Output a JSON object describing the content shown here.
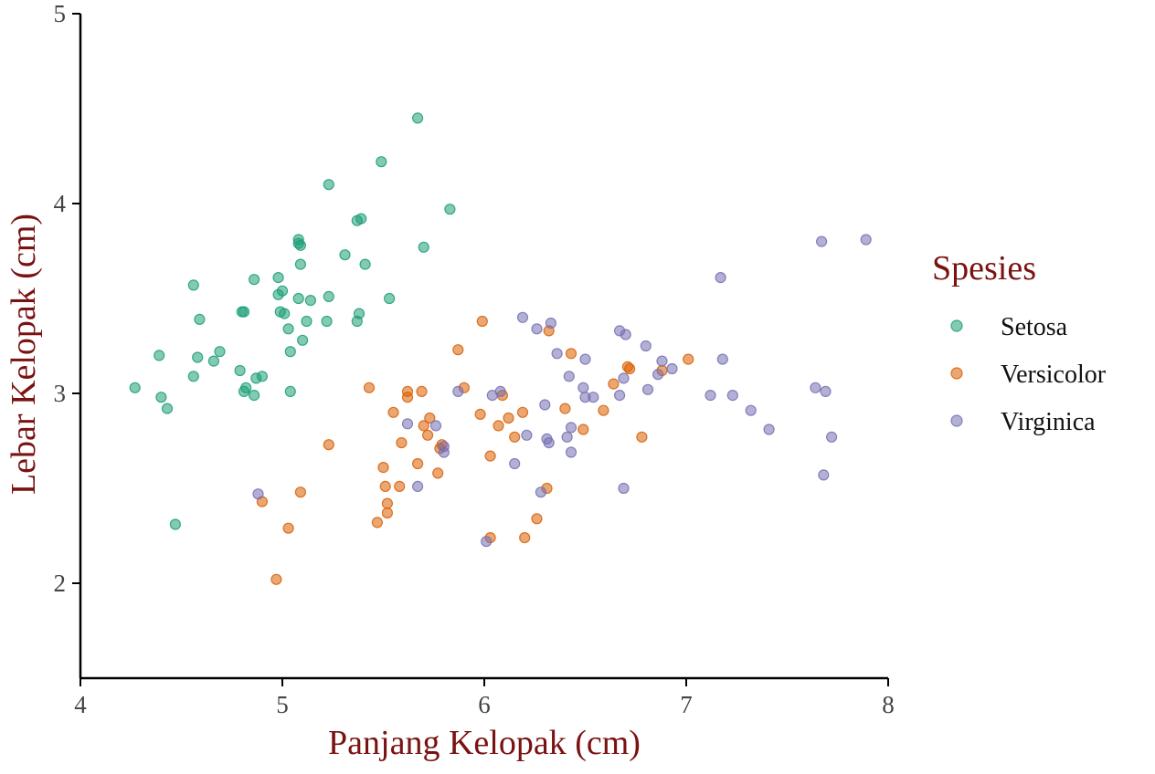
{
  "chart_data": {
    "type": "scatter",
    "xlabel": "Panjang Kelopak (cm)",
    "ylabel": "Lebar Kelopak (cm)",
    "xlim": [
      4,
      8
    ],
    "ylim": [
      1.5,
      5
    ],
    "xticks": [
      "4",
      "5",
      "6",
      "7",
      "8"
    ],
    "yticks": [
      "2",
      "3",
      "4",
      "5"
    ],
    "grid": false,
    "legend": {
      "title": "Spesies",
      "position": "right"
    },
    "series": [
      {
        "name": "Setosa",
        "color": "#1b9e77",
        "points": [
          [
            4.27,
            3.03
          ],
          [
            4.4,
            2.98
          ],
          [
            4.39,
            3.2
          ],
          [
            4.43,
            2.92
          ],
          [
            4.47,
            2.31
          ],
          [
            4.56,
            3.57
          ],
          [
            4.56,
            3.09
          ],
          [
            4.58,
            3.19
          ],
          [
            4.59,
            3.39
          ],
          [
            4.66,
            3.17
          ],
          [
            4.69,
            3.22
          ],
          [
            4.79,
            3.12
          ],
          [
            4.8,
            3.43
          ],
          [
            4.81,
            3.43
          ],
          [
            4.81,
            3.01
          ],
          [
            4.82,
            3.03
          ],
          [
            4.86,
            2.99
          ],
          [
            4.86,
            3.6
          ],
          [
            4.87,
            3.08
          ],
          [
            4.9,
            3.09
          ],
          [
            4.98,
            3.52
          ],
          [
            4.98,
            3.61
          ],
          [
            4.99,
            3.43
          ],
          [
            5.0,
            3.54
          ],
          [
            5.01,
            3.42
          ],
          [
            5.03,
            3.34
          ],
          [
            5.04,
            3.22
          ],
          [
            5.04,
            3.01
          ],
          [
            5.08,
            3.81
          ],
          [
            5.08,
            3.79
          ],
          [
            5.08,
            3.5
          ],
          [
            5.09,
            3.78
          ],
          [
            5.09,
            3.68
          ],
          [
            5.1,
            3.28
          ],
          [
            5.12,
            3.38
          ],
          [
            5.14,
            3.49
          ],
          [
            5.22,
            3.38
          ],
          [
            5.23,
            3.51
          ],
          [
            5.23,
            4.1
          ],
          [
            5.31,
            3.73
          ],
          [
            5.37,
            3.38
          ],
          [
            5.37,
            3.91
          ],
          [
            5.38,
            3.42
          ],
          [
            5.39,
            3.92
          ],
          [
            5.41,
            3.68
          ],
          [
            5.49,
            4.22
          ],
          [
            5.53,
            3.5
          ],
          [
            5.67,
            4.45
          ],
          [
            5.7,
            3.77
          ],
          [
            5.83,
            3.97
          ]
        ]
      },
      {
        "name": "Versicolor",
        "color": "#d95f02",
        "points": [
          [
            4.9,
            2.43
          ],
          [
            4.97,
            2.02
          ],
          [
            5.03,
            2.29
          ],
          [
            5.09,
            2.48
          ],
          [
            5.23,
            2.73
          ],
          [
            5.43,
            3.03
          ],
          [
            5.47,
            2.32
          ],
          [
            5.5,
            2.61
          ],
          [
            5.51,
            2.51
          ],
          [
            5.52,
            2.42
          ],
          [
            5.52,
            2.37
          ],
          [
            5.55,
            2.9
          ],
          [
            5.58,
            2.51
          ],
          [
            5.59,
            2.74
          ],
          [
            5.62,
            3.01
          ],
          [
            5.62,
            2.98
          ],
          [
            5.67,
            2.63
          ],
          [
            5.69,
            3.01
          ],
          [
            5.7,
            2.83
          ],
          [
            5.72,
            2.78
          ],
          [
            5.73,
            2.87
          ],
          [
            5.77,
            2.58
          ],
          [
            5.78,
            2.71
          ],
          [
            5.79,
            2.73
          ],
          [
            5.87,
            3.23
          ],
          [
            5.9,
            3.03
          ],
          [
            5.98,
            2.89
          ],
          [
            5.99,
            3.38
          ],
          [
            6.03,
            2.67
          ],
          [
            6.03,
            2.24
          ],
          [
            6.07,
            2.83
          ],
          [
            6.09,
            2.99
          ],
          [
            6.12,
            2.87
          ],
          [
            6.15,
            2.77
          ],
          [
            6.19,
            2.9
          ],
          [
            6.2,
            2.24
          ],
          [
            6.26,
            2.34
          ],
          [
            6.31,
            2.5
          ],
          [
            6.32,
            3.33
          ],
          [
            6.4,
            2.92
          ],
          [
            6.43,
            3.21
          ],
          [
            6.49,
            2.81
          ],
          [
            6.59,
            2.91
          ],
          [
            6.64,
            3.05
          ],
          [
            6.71,
            3.14
          ],
          [
            6.72,
            3.13
          ],
          [
            6.78,
            2.77
          ],
          [
            6.88,
            3.12
          ],
          [
            7.01,
            3.18
          ]
        ]
      },
      {
        "name": "Virginica",
        "color": "#7570b3",
        "points": [
          [
            4.88,
            2.47
          ],
          [
            5.62,
            2.84
          ],
          [
            5.67,
            2.51
          ],
          [
            5.76,
            2.83
          ],
          [
            5.8,
            2.69
          ],
          [
            5.8,
            2.72
          ],
          [
            5.87,
            3.01
          ],
          [
            6.01,
            2.22
          ],
          [
            6.04,
            2.99
          ],
          [
            6.08,
            3.01
          ],
          [
            6.15,
            2.63
          ],
          [
            6.19,
            3.4
          ],
          [
            6.21,
            2.78
          ],
          [
            6.26,
            3.34
          ],
          [
            6.28,
            2.48
          ],
          [
            6.3,
            2.94
          ],
          [
            6.31,
            2.76
          ],
          [
            6.32,
            2.74
          ],
          [
            6.33,
            3.37
          ],
          [
            6.36,
            3.21
          ],
          [
            6.41,
            2.77
          ],
          [
            6.42,
            3.09
          ],
          [
            6.43,
            2.82
          ],
          [
            6.43,
            2.69
          ],
          [
            6.49,
            3.03
          ],
          [
            6.5,
            3.18
          ],
          [
            6.5,
            2.98
          ],
          [
            6.54,
            2.98
          ],
          [
            6.67,
            2.99
          ],
          [
            6.67,
            3.33
          ],
          [
            6.69,
            2.5
          ],
          [
            6.69,
            3.08
          ],
          [
            6.7,
            3.31
          ],
          [
            6.8,
            3.25
          ],
          [
            6.81,
            3.02
          ],
          [
            6.86,
            3.1
          ],
          [
            6.88,
            3.17
          ],
          [
            6.93,
            3.13
          ],
          [
            7.12,
            2.99
          ],
          [
            7.17,
            3.61
          ],
          [
            7.18,
            3.18
          ],
          [
            7.23,
            2.99
          ],
          [
            7.32,
            2.91
          ],
          [
            7.41,
            2.81
          ],
          [
            7.64,
            3.03
          ],
          [
            7.67,
            3.8
          ],
          [
            7.68,
            2.57
          ],
          [
            7.69,
            3.01
          ],
          [
            7.72,
            2.77
          ],
          [
            7.89,
            3.81
          ]
        ]
      }
    ]
  }
}
